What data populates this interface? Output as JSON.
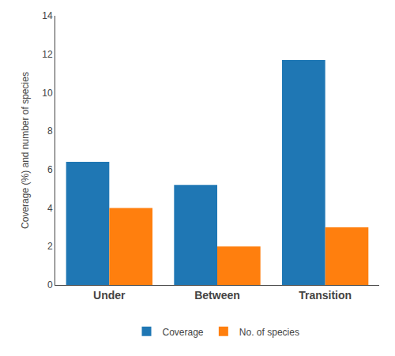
{
  "chart_data": {
    "type": "bar",
    "categories": [
      "Under",
      "Between",
      "Transition"
    ],
    "series": [
      {
        "name": "Coverage",
        "values": [
          6.4,
          5.2,
          11.7
        ]
      },
      {
        "name": "No. of species",
        "values": [
          4.0,
          2.0,
          3.0
        ]
      }
    ],
    "ylabel": "Coverage (%) and number of species",
    "ylim": [
      0,
      14
    ],
    "yticks": [
      0,
      2,
      4,
      6,
      8,
      10,
      12,
      14
    ],
    "grid": false,
    "legend": "bottom"
  }
}
